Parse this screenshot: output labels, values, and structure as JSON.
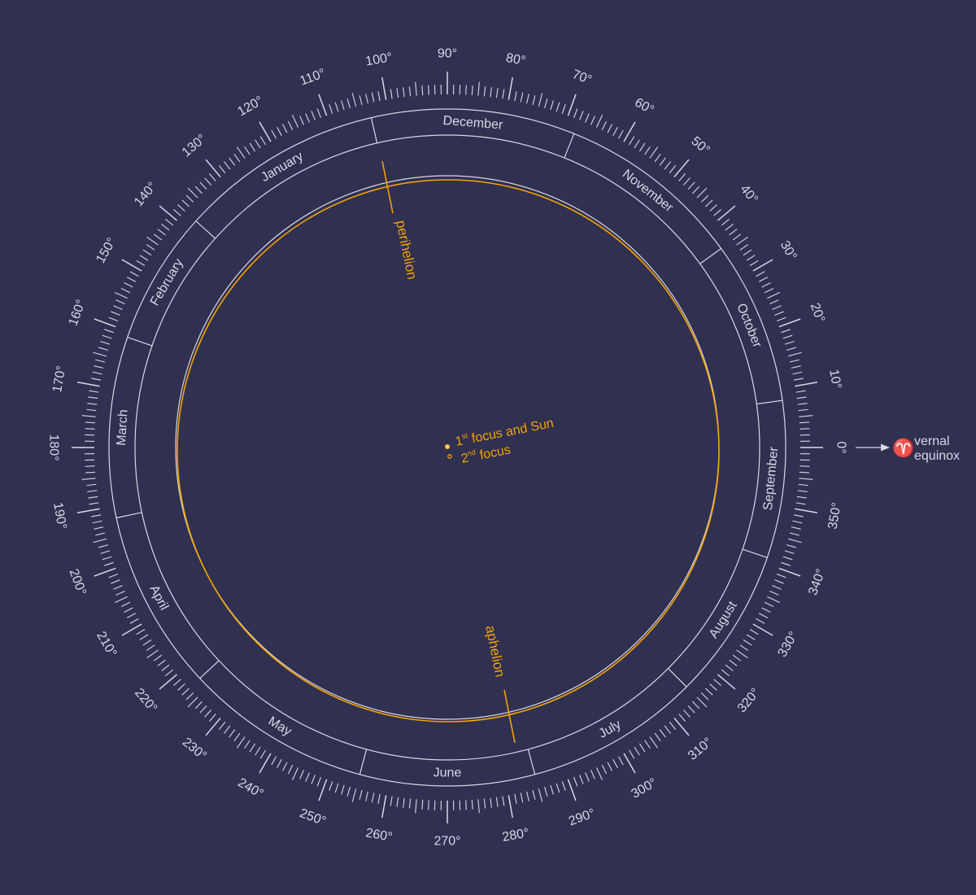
{
  "colors": {
    "background": "#303050",
    "ink": "#d8d8e6",
    "orbit": "#f5a300"
  },
  "degree_scale": {
    "labels": [
      "0°",
      "10°",
      "20°",
      "30°",
      "40°",
      "50°",
      "60°",
      "70°",
      "80°",
      "90°",
      "100°",
      "110°",
      "120°",
      "130°",
      "140°",
      "150°",
      "160°",
      "170°",
      "180°",
      "190°",
      "200°",
      "210°",
      "220°",
      "230°",
      "240°",
      "250°",
      "260°",
      "270°",
      "280°",
      "290°",
      "300°",
      "310°",
      "320°",
      "330°",
      "340°",
      "350°"
    ],
    "label_angles_deg": [
      0,
      10,
      20,
      30,
      40,
      50,
      60,
      70,
      80,
      90,
      100,
      110,
      120,
      130,
      140,
      150,
      160,
      170,
      180,
      190,
      200,
      210,
      220,
      230,
      240,
      250,
      260,
      270,
      280,
      290,
      300,
      310,
      320,
      330,
      340,
      350
    ],
    "tick_step_deg": 1
  },
  "months": [
    {
      "name": "January",
      "start_deg": 138,
      "end_deg": 103
    },
    {
      "name": "December",
      "start_deg": 103,
      "end_deg": 68
    },
    {
      "name": "November",
      "start_deg": 68,
      "end_deg": 36
    },
    {
      "name": "October",
      "start_deg": 36,
      "end_deg": 8
    },
    {
      "name": "September",
      "start_deg": 8,
      "end_deg": -19
    },
    {
      "name": "August",
      "start_deg": -19,
      "end_deg": -45
    },
    {
      "name": "July",
      "start_deg": -45,
      "end_deg": -75
    },
    {
      "name": "June",
      "start_deg": -75,
      "end_deg": -105
    },
    {
      "name": "May",
      "start_deg": -105,
      "end_deg": -137
    },
    {
      "name": "April",
      "start_deg": -137,
      "end_deg": -168
    },
    {
      "name": "March",
      "start_deg": -168,
      "end_deg": -199
    },
    {
      "name": "February",
      "start_deg": -199,
      "end_deg": -222
    }
  ],
  "orbit": {
    "perihelion_deg": 102.9,
    "aphelion_deg": 282.9
  },
  "labels": {
    "perihelion": "perihelion",
    "aphelion": "aphelion",
    "focus1_prefix": "1",
    "focus1_sup": "st",
    "focus1_suffix": " focus and Sun",
    "focus2_prefix": "2",
    "focus2_sup": "nd",
    "focus2_suffix": " focus",
    "aries_symbol": "♈",
    "vernal_line1": "vernal",
    "vernal_line2": "equinox"
  }
}
